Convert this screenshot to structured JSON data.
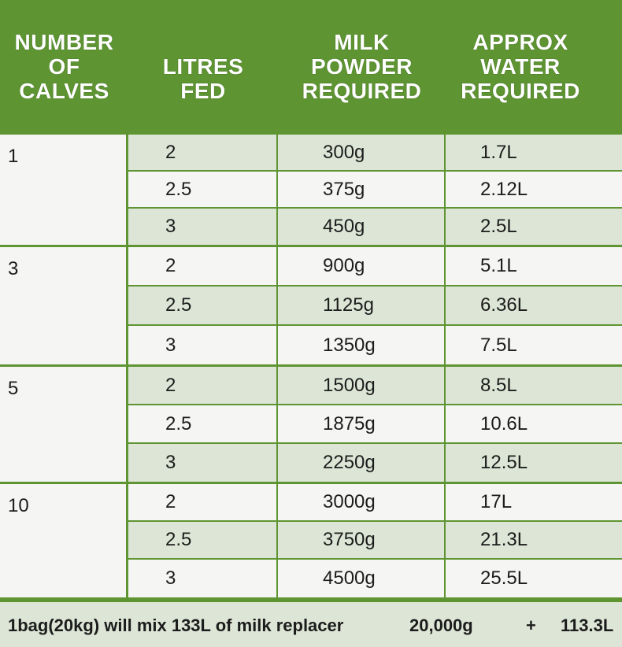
{
  "headers": {
    "calves": [
      "NUMBER",
      "OF",
      "CALVES"
    ],
    "litres": [
      "LITRES",
      "FED"
    ],
    "powder": [
      "MILK",
      "POWDER",
      "REQUIRED"
    ],
    "water": [
      "APPROX",
      "WATER",
      "REQUIRED"
    ]
  },
  "groups": [
    {
      "calves": "1",
      "rows": [
        {
          "litres": "2",
          "powder": "300g",
          "water": "1.7L"
        },
        {
          "litres": "2.5",
          "powder": "375g",
          "water": "2.12L"
        },
        {
          "litres": "3",
          "powder": "450g",
          "water": "2.5L"
        }
      ]
    },
    {
      "calves": "3",
      "rows": [
        {
          "litres": "2",
          "powder": "900g",
          "water": "5.1L"
        },
        {
          "litres": "2.5",
          "powder": "1125g",
          "water": "6.36L"
        },
        {
          "litres": "3",
          "powder": "1350g",
          "water": "7.5L"
        }
      ]
    },
    {
      "calves": "5",
      "rows": [
        {
          "litres": "2",
          "powder": "1500g",
          "water": "8.5L"
        },
        {
          "litres": "2.5",
          "powder": "1875g",
          "water": "10.6L"
        },
        {
          "litres": "3",
          "powder": "2250g",
          "water": "12.5L"
        }
      ]
    },
    {
      "calves": "10",
      "rows": [
        {
          "litres": "2",
          "powder": "3000g",
          "water": "17L"
        },
        {
          "litres": "2.5",
          "powder": "3750g",
          "water": "21.3L"
        },
        {
          "litres": "3",
          "powder": "4500g",
          "water": "25.5L"
        }
      ]
    }
  ],
  "footer": {
    "text": "1bag(20kg) will mix 133L of milk replacer",
    "powder": "20,000g",
    "plus": "+",
    "water": "113.3L"
  },
  "colors": {
    "header_green": "#5e9532",
    "row_shade": "#dde6d6",
    "row_light": "#f5f6f3"
  }
}
